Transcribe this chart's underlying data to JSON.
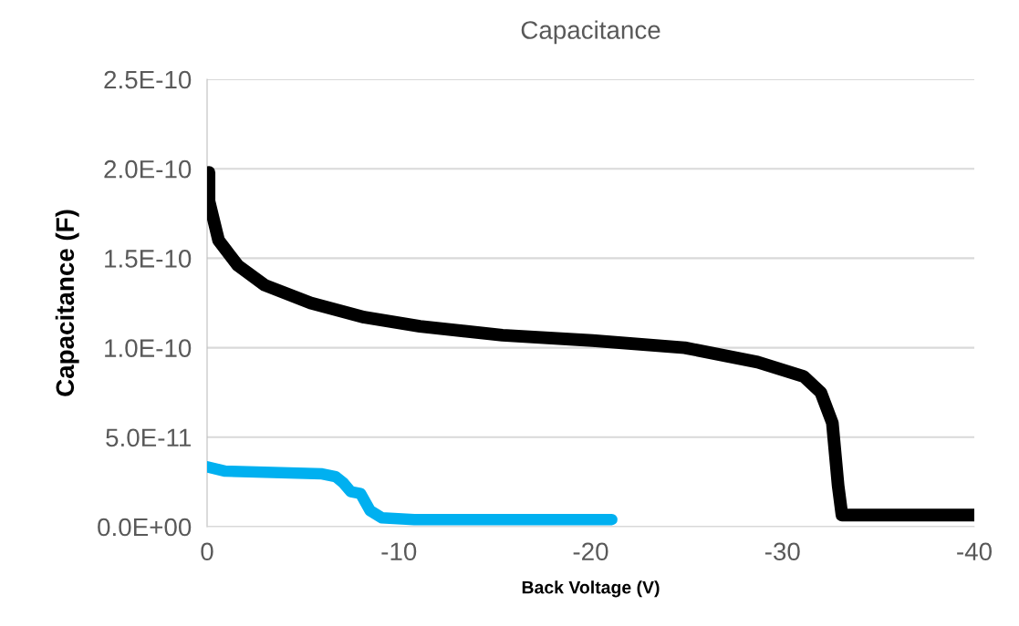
{
  "chart_data": {
    "type": "line",
    "title": "Capacitance",
    "xlabel": "Back Voltage (V)",
    "ylabel": "Capacitance (F)",
    "xlim": [
      0,
      -40
    ],
    "ylim": [
      0,
      2.5e-10
    ],
    "xticks": [
      0,
      {
        "value": -10,
        "label": "-10"
      },
      {
        "value": -20,
        "label": "-20"
      },
      {
        "value": -30,
        "label": "-30"
      },
      {
        "value": -40,
        "label": "-40"
      }
    ],
    "yticks": [
      {
        "value": 0,
        "label": "0.0E+00"
      },
      {
        "value": 5e-11,
        "label": "5.0E-11"
      },
      {
        "value": 1e-10,
        "label": "1.0E-10"
      },
      {
        "value": 1.5e-10,
        "label": "1.5E-10"
      },
      {
        "value": 2e-10,
        "label": "2.0E-10"
      },
      {
        "value": 2.5e-10,
        "label": "2.5E-10"
      }
    ],
    "grid": "y",
    "line_style": "solid",
    "series": [
      {
        "color": "#000000",
        "x": [
          -0.1,
          -0.1,
          -0.6,
          -1.6,
          -3.0,
          -5.4,
          -8.2,
          -11.1,
          -15.4,
          -20.1,
          -24.9,
          -28.7,
          -31.1,
          -32.0,
          -32.6,
          -32.9,
          -33.1,
          -40
        ],
        "values": [
          1.98e-10,
          1.82e-10,
          1.6e-10,
          1.46e-10,
          1.35e-10,
          1.25e-10,
          1.17e-10,
          1.12e-10,
          1.07e-10,
          1.04e-10,
          1e-10,
          9.2e-11,
          8.4e-11,
          7.5e-11,
          5.8e-11,
          2.3e-11,
          6.5e-12,
          6.5e-12
        ]
      },
      {
        "color": "#00b0f0",
        "x": [
          0,
          -0.95,
          -6.0,
          -6.7,
          -7.1,
          -7.5,
          -8.0,
          -8.5,
          -9.1,
          -10.8,
          -21.1
        ],
        "values": [
          3.35e-11,
          3.1e-11,
          2.95e-11,
          2.8e-11,
          2.45e-11,
          1.95e-11,
          1.85e-11,
          9e-12,
          5e-12,
          4e-12,
          4e-12
        ]
      }
    ]
  }
}
